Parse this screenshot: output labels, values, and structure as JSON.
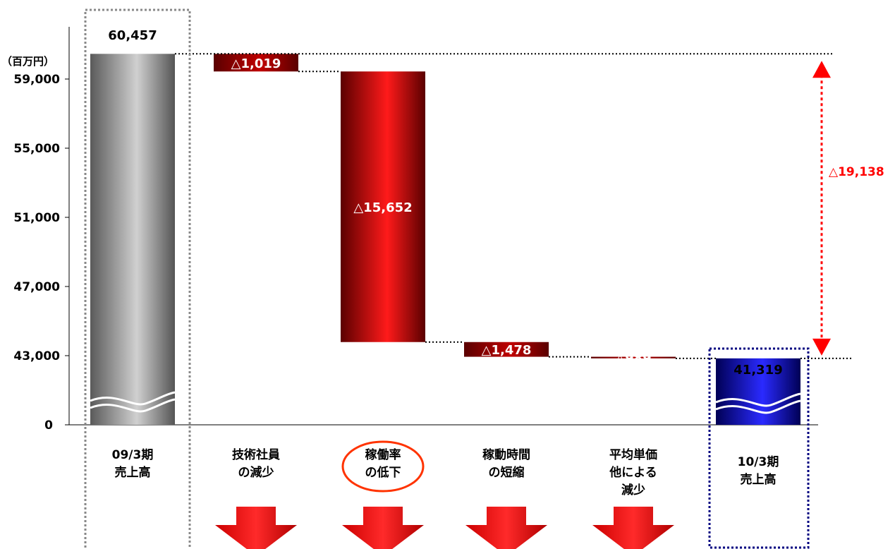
{
  "unit_label": "（百万円）",
  "chart_data": {
    "type": "bar",
    "subtype": "waterfall",
    "y_ticks": [
      "59,000",
      "55,000",
      "51,000",
      "47,000",
      "43,000",
      "0"
    ],
    "y_tick_values": [
      59000,
      55000,
      51000,
      47000,
      43000,
      0
    ],
    "axis_break": true,
    "start": {
      "category": [
        "09/3期",
        "売上高"
      ],
      "value": 60457,
      "label": "60,457",
      "color": "#9a9a9a"
    },
    "steps": [
      {
        "category": [
          "技術社員",
          "の減少"
        ],
        "delta": -1019,
        "label": "△1,019",
        "color": "#a80000"
      },
      {
        "category": [
          "稼働率",
          "の低下"
        ],
        "delta": -15652,
        "label": "△15,652",
        "color": "#e00000",
        "highlighted": true
      },
      {
        "category": [
          "稼動時間",
          "の短縮"
        ],
        "delta": -1478,
        "label": "△1,478",
        "color": "#a80000"
      },
      {
        "category": [
          "平均単価",
          "他による",
          "減少"
        ],
        "delta": -989,
        "label": "△989",
        "color": "#a80000"
      }
    ],
    "end": {
      "category": [
        "10/3期",
        "売上高"
      ],
      "value": 41319,
      "label": "41,319",
      "color": "#1a1ab0"
    },
    "total_change": {
      "value": -19138,
      "label": "△19,138",
      "color": "#ff0000"
    }
  }
}
